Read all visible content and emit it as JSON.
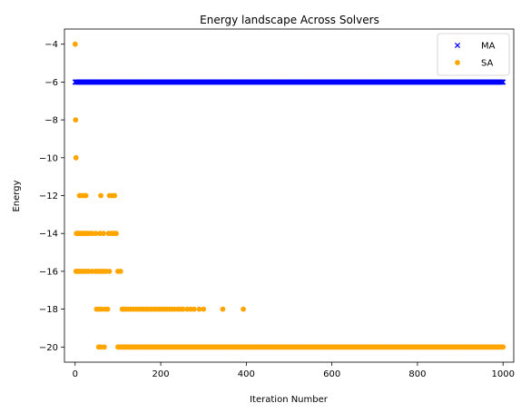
{
  "chart_data": {
    "type": "scatter",
    "title": "Energy landscape Across Solvers",
    "xlabel": "Iteration Number",
    "ylabel": "Energy",
    "xlim": [
      -25,
      1025
    ],
    "ylim": [
      -20.8,
      -3.2
    ],
    "xticks": [
      0,
      200,
      400,
      600,
      800,
      1000
    ],
    "yticks": [
      -4,
      -6,
      -8,
      -10,
      -12,
      -14,
      -16,
      -18,
      -20
    ],
    "legend_position": "top-right",
    "grid": false,
    "series": [
      {
        "name": "MA",
        "marker": "x",
        "color": "#0000ff",
        "constant_y": -6,
        "x_range": [
          0,
          1000
        ],
        "x_step": 2
      },
      {
        "name": "SA",
        "marker": "o",
        "color": "#ffa500",
        "points": [
          [
            0,
            -4
          ],
          [
            1,
            -8
          ],
          [
            2,
            -10
          ],
          [
            3,
            -14
          ],
          [
            5,
            -14
          ],
          [
            8,
            -14
          ],
          [
            12,
            -14
          ],
          [
            16,
            -14
          ],
          [
            20,
            -14
          ],
          [
            24,
            -14
          ],
          [
            28,
            -14
          ],
          [
            34,
            -14
          ],
          [
            40,
            -14
          ],
          [
            48,
            -14
          ],
          [
            58,
            -14
          ],
          [
            66,
            -14
          ],
          [
            78,
            -14
          ],
          [
            84,
            -14
          ],
          [
            90,
            -14
          ],
          [
            96,
            -14
          ],
          [
            10,
            -12
          ],
          [
            15,
            -12
          ],
          [
            20,
            -12
          ],
          [
            25,
            -12
          ],
          [
            60,
            -12
          ],
          [
            80,
            -12
          ],
          [
            86,
            -12
          ],
          [
            92,
            -12
          ],
          [
            2,
            -16
          ],
          [
            6,
            -16
          ],
          [
            10,
            -16
          ],
          [
            14,
            -16
          ],
          [
            20,
            -16
          ],
          [
            26,
            -16
          ],
          [
            32,
            -16
          ],
          [
            40,
            -16
          ],
          [
            48,
            -16
          ],
          [
            54,
            -16
          ],
          [
            60,
            -16
          ],
          [
            66,
            -16
          ],
          [
            72,
            -16
          ],
          [
            80,
            -16
          ],
          [
            100,
            -16
          ],
          [
            106,
            -16
          ],
          [
            50,
            -18
          ],
          [
            56,
            -18
          ],
          [
            62,
            -18
          ],
          [
            70,
            -18
          ],
          [
            76,
            -18
          ],
          [
            110,
            -18
          ],
          [
            114,
            -18
          ],
          [
            118,
            -18
          ],
          [
            124,
            -18
          ],
          [
            130,
            -18
          ],
          [
            136,
            -18
          ],
          [
            142,
            -18
          ],
          [
            148,
            -18
          ],
          [
            154,
            -18
          ],
          [
            160,
            -18
          ],
          [
            166,
            -18
          ],
          [
            172,
            -18
          ],
          [
            178,
            -18
          ],
          [
            184,
            -18
          ],
          [
            190,
            -18
          ],
          [
            196,
            -18
          ],
          [
            202,
            -18
          ],
          [
            208,
            -18
          ],
          [
            214,
            -18
          ],
          [
            220,
            -18
          ],
          [
            226,
            -18
          ],
          [
            232,
            -18
          ],
          [
            240,
            -18
          ],
          [
            246,
            -18
          ],
          [
            252,
            -18
          ],
          [
            262,
            -18
          ],
          [
            270,
            -18
          ],
          [
            278,
            -18
          ],
          [
            290,
            -18
          ],
          [
            300,
            -18
          ],
          [
            345,
            -18
          ],
          [
            393,
            -18
          ],
          [
            55,
            -20
          ],
          [
            60,
            -20
          ],
          [
            68,
            -20
          ]
        ],
        "dense_y": -20,
        "dense_x_range": [
          100,
          1000
        ],
        "dense_x_step": 3
      }
    ]
  }
}
